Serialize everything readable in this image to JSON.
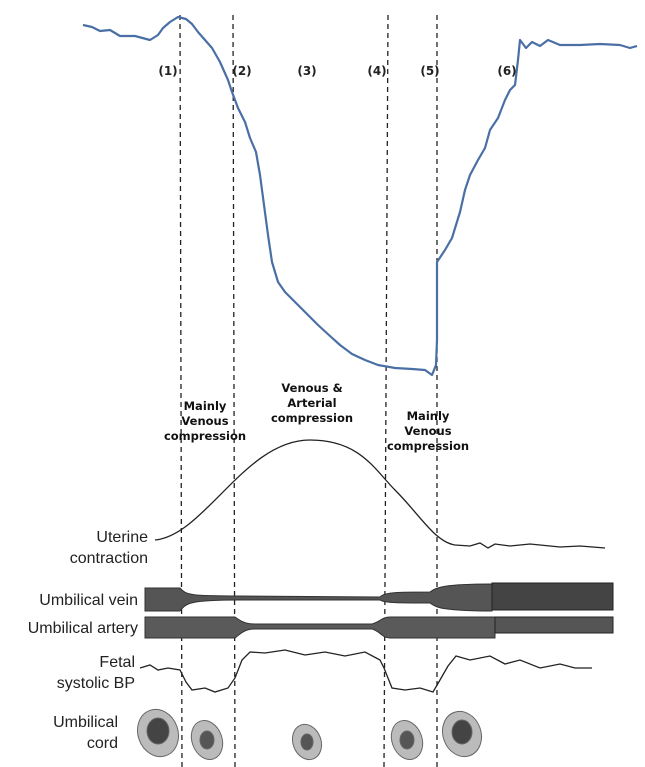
{
  "phases": [
    "(1)",
    "(2)",
    "(3)",
    "(4)",
    "(5)",
    "(6)"
  ],
  "annotations": [
    {
      "lines": [
        "Mainly",
        "Venous",
        "compression"
      ]
    },
    {
      "lines": [
        "Venous &",
        "Arterial",
        "compression"
      ]
    },
    {
      "lines": [
        "Mainly",
        "Venous",
        "compression"
      ]
    }
  ],
  "rows": [
    {
      "lines": [
        "Uterine",
        "contraction"
      ]
    },
    {
      "lines": [
        "Umbilical vein"
      ]
    },
    {
      "lines": [
        "Umbilical artery"
      ]
    },
    {
      "lines": [
        "Fetal",
        "systolic BP"
      ]
    },
    {
      "lines": [
        "Umbilical",
        "cord"
      ]
    }
  ]
}
